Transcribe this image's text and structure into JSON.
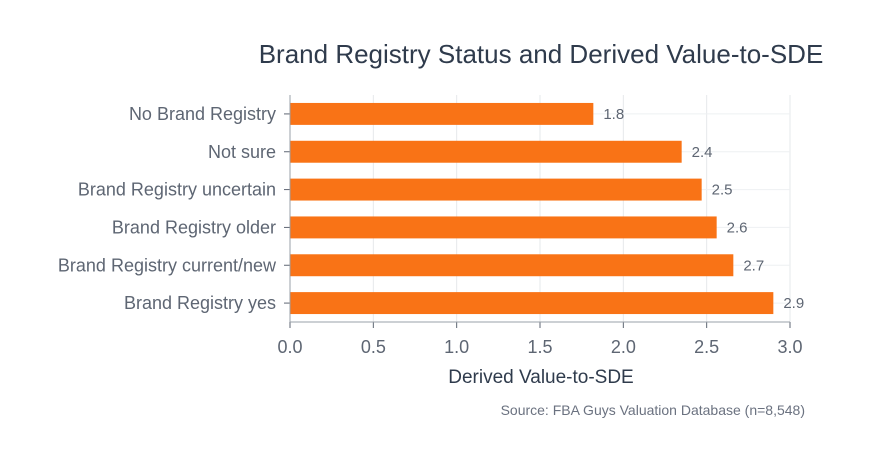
{
  "chart_data": {
    "type": "bar",
    "orientation": "horizontal",
    "title": "Brand Registry Status and Derived Value-to-SDE",
    "xlabel": "Derived Value-to-SDE",
    "ylabel": "",
    "categories": [
      "No Brand Registry",
      "Not sure",
      "Brand Registry uncertain",
      "Brand Registry older",
      "Brand Registry current/new",
      "Brand Registry yes"
    ],
    "values": [
      1.82,
      2.35,
      2.47,
      2.56,
      2.66,
      2.9
    ],
    "value_labels": [
      "1.8",
      "2.4",
      "2.5",
      "2.6",
      "2.7",
      "2.9"
    ],
    "xlim": [
      0,
      3.0
    ],
    "xticks": [
      "0.0",
      "0.5",
      "1.0",
      "1.5",
      "2.0",
      "2.5",
      "3.0"
    ],
    "grid": true,
    "bar_color": "#f97316",
    "source": "Source: FBA Guys Valuation Database (n=8,548)"
  }
}
